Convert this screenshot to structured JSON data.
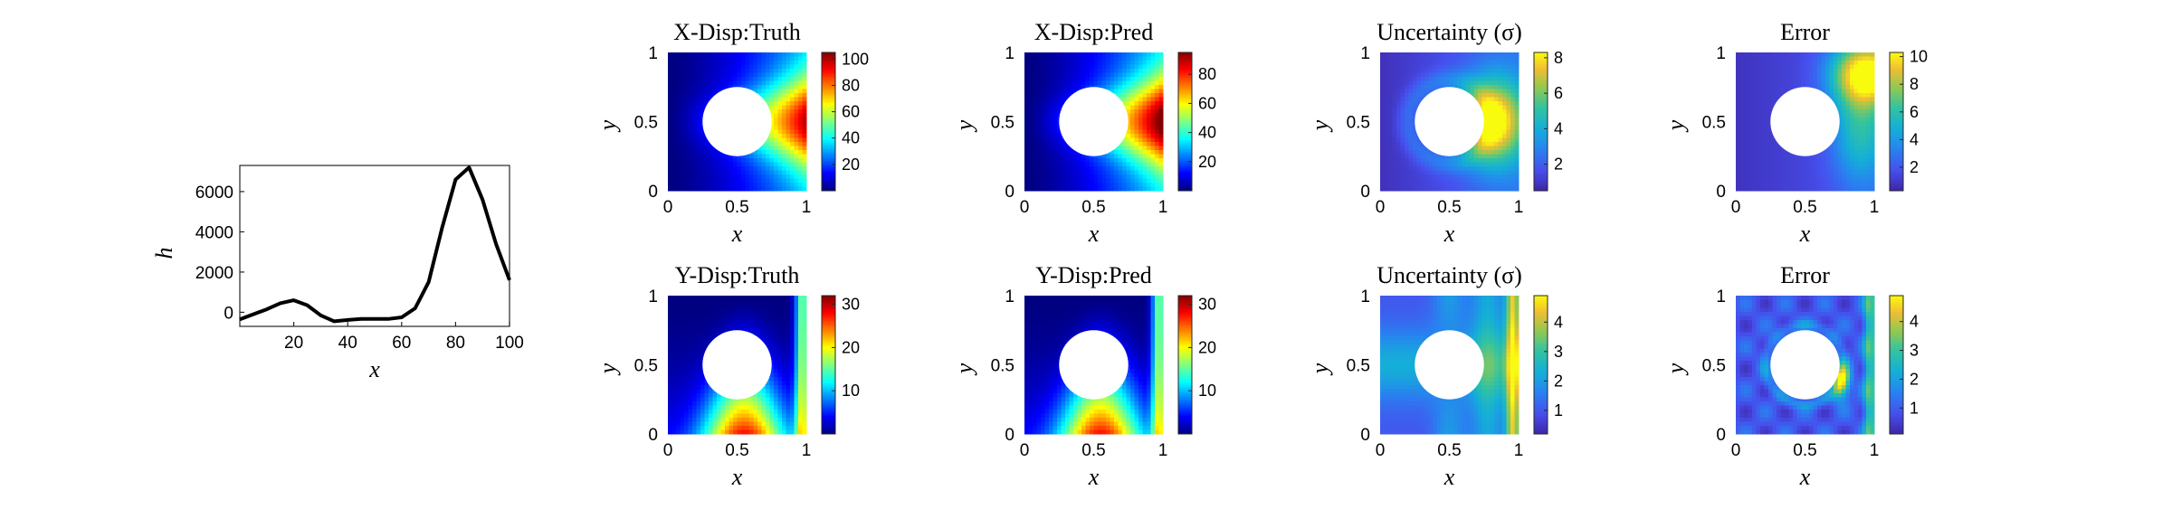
{
  "chart_data": [
    {
      "type": "line",
      "xlabel": "x",
      "ylabel": "h",
      "xlim": [
        0,
        100
      ],
      "ylim": [
        -700,
        7300
      ],
      "xticks": [
        20,
        40,
        60,
        80,
        100
      ],
      "yticks": [
        0,
        2000,
        4000,
        6000
      ],
      "series": [
        {
          "x": [
            0,
            5,
            10,
            15,
            20,
            25,
            30,
            35,
            40,
            45,
            50,
            55,
            60,
            65,
            70,
            75,
            80,
            85,
            90,
            95,
            100
          ],
          "values": [
            -350,
            -100,
            150,
            450,
            600,
            350,
            -150,
            -450,
            -380,
            -330,
            -330,
            -330,
            -250,
            200,
            1500,
            4200,
            6600,
            7200,
            5600,
            3400,
            1600
          ]
        }
      ]
    },
    {
      "type": "heatmap",
      "title": "X-Disp:Truth",
      "field": "x_disp",
      "colormap": "jet",
      "xlabel": "x",
      "ylabel": "y",
      "xlim": [
        0,
        1
      ],
      "ylim": [
        0,
        1
      ],
      "xticks": [
        0,
        0.5,
        1
      ],
      "yticks": [
        0,
        0.5,
        1
      ],
      "hole": {
        "cx": 0.5,
        "cy": 0.5,
        "r": 0.25
      },
      "clim": [
        0,
        105
      ],
      "colorbar_ticks": [
        20,
        40,
        60,
        80,
        100
      ]
    },
    {
      "type": "heatmap",
      "title": "X-Disp:Pred",
      "field": "x_disp",
      "colormap": "jet",
      "xlabel": "x",
      "ylabel": "y",
      "xlim": [
        0,
        1
      ],
      "ylim": [
        0,
        1
      ],
      "xticks": [
        0,
        0.5,
        1
      ],
      "yticks": [
        0,
        0.5,
        1
      ],
      "hole": {
        "cx": 0.5,
        "cy": 0.5,
        "r": 0.25
      },
      "clim": [
        0,
        95
      ],
      "colorbar_ticks": [
        20,
        40,
        60,
        80
      ]
    },
    {
      "type": "heatmap",
      "title": "Uncertainty (σ)",
      "field": "x_unc",
      "colormap": "parula",
      "xlabel": "x",
      "ylabel": "y",
      "xlim": [
        0,
        1
      ],
      "ylim": [
        0,
        1
      ],
      "xticks": [
        0,
        0.5,
        1
      ],
      "yticks": [
        0,
        0.5,
        1
      ],
      "hole": {
        "cx": 0.5,
        "cy": 0.5,
        "r": 0.25
      },
      "clim": [
        0.5,
        8.3
      ],
      "colorbar_ticks": [
        2,
        4,
        6,
        8
      ]
    },
    {
      "type": "heatmap",
      "title": "Error",
      "field": "x_err",
      "colormap": "parula",
      "xlabel": "x",
      "ylabel": "y",
      "xlim": [
        0,
        1
      ],
      "ylim": [
        0,
        1
      ],
      "xticks": [
        0,
        0.5,
        1
      ],
      "yticks": [
        0,
        0.5,
        1
      ],
      "hole": {
        "cx": 0.5,
        "cy": 0.5,
        "r": 0.25
      },
      "clim": [
        0.3,
        10.3
      ],
      "colorbar_ticks": [
        2,
        4,
        6,
        8,
        10
      ]
    },
    {
      "type": "heatmap",
      "title": "Y-Disp:Truth",
      "field": "y_disp",
      "colormap": "jet",
      "xlabel": "x",
      "ylabel": "y",
      "xlim": [
        0,
        1
      ],
      "ylim": [
        0,
        1
      ],
      "xticks": [
        0,
        0.5,
        1
      ],
      "yticks": [
        0,
        0.5,
        1
      ],
      "hole": {
        "cx": 0.5,
        "cy": 0.5,
        "r": 0.25
      },
      "clim": [
        0,
        32
      ],
      "colorbar_ticks": [
        10,
        20,
        30
      ]
    },
    {
      "type": "heatmap",
      "title": "Y-Disp:Pred",
      "field": "y_disp",
      "colormap": "jet",
      "xlabel": "x",
      "ylabel": "y",
      "xlim": [
        0,
        1
      ],
      "ylim": [
        0,
        1
      ],
      "xticks": [
        0,
        0.5,
        1
      ],
      "yticks": [
        0,
        0.5,
        1
      ],
      "hole": {
        "cx": 0.5,
        "cy": 0.5,
        "r": 0.25
      },
      "clim": [
        0,
        32
      ],
      "colorbar_ticks": [
        10,
        20,
        30
      ]
    },
    {
      "type": "heatmap",
      "title": "Uncertainty (σ)",
      "field": "y_unc",
      "colormap": "parula",
      "xlabel": "x",
      "ylabel": "y",
      "xlim": [
        0,
        1
      ],
      "ylim": [
        0,
        1
      ],
      "xticks": [
        0,
        0.5,
        1
      ],
      "yticks": [
        0,
        0.5,
        1
      ],
      "hole": {
        "cx": 0.5,
        "cy": 0.5,
        "r": 0.25
      },
      "clim": [
        0.2,
        4.9
      ],
      "colorbar_ticks": [
        1,
        2,
        3,
        4
      ]
    },
    {
      "type": "heatmap",
      "title": "Error",
      "field": "y_err",
      "colormap": "parula",
      "xlabel": "x",
      "ylabel": "y",
      "xlim": [
        0,
        1
      ],
      "ylim": [
        0,
        1
      ],
      "xticks": [
        0,
        0.5,
        1
      ],
      "yticks": [
        0,
        0.5,
        1
      ],
      "hole": {
        "cx": 0.5,
        "cy": 0.5,
        "r": 0.25
      },
      "clim": [
        0.1,
        4.9
      ],
      "colorbar_ticks": [
        1,
        2,
        3,
        4
      ]
    }
  ]
}
